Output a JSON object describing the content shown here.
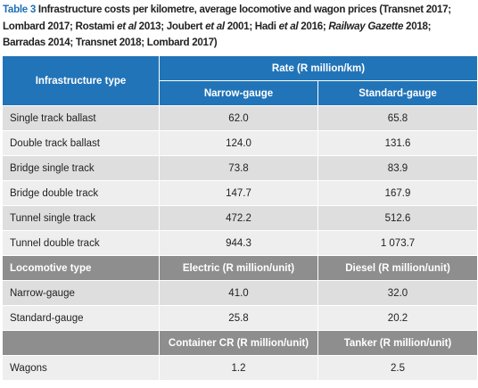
{
  "caption": {
    "label": "Table 3",
    "runs": [
      {
        "text": "Infrastructure costs per kilometre, average locomotive and wagon prices (Transnet 2017; Lombard 2017; Rostami "
      },
      {
        "text": "et al",
        "italic": true
      },
      {
        "text": " 2013; Joubert "
      },
      {
        "text": "et al",
        "italic": true
      },
      {
        "text": " 2001; Hadi "
      },
      {
        "text": "et al",
        "italic": true
      },
      {
        "text": " 2016; "
      },
      {
        "text": "Railway Gazette",
        "italic": true
      },
      {
        "text": " 2018; Barradas 2014; Transnet 2018; Lombard 2017)"
      }
    ]
  },
  "table": {
    "header": {
      "row_header": "Infrastructure type",
      "group": "Rate (R million/km)",
      "columns": [
        "Narrow-gauge",
        "Standard-gauge"
      ]
    },
    "infrastructure": [
      [
        "Single track ballast",
        "62.0",
        "65.8"
      ],
      [
        "Double track ballast",
        "124.0",
        "131.6"
      ],
      [
        "Bridge single track",
        "73.8",
        "83.9"
      ],
      [
        "Bridge double track",
        "147.7",
        "167.9"
      ],
      [
        "Tunnel single track",
        "472.2",
        "512.6"
      ],
      [
        "Tunnel double track",
        "944.3",
        "1 073.7"
      ]
    ],
    "locomotives": {
      "header": [
        "Locomotive type",
        "Electric (R million/unit)",
        "Diesel (R million/unit)"
      ],
      "rows": [
        [
          "Narrow-gauge",
          "41.0",
          "32.0"
        ],
        [
          "Standard-gauge",
          "25.8",
          "20.2"
        ]
      ]
    },
    "wagons": {
      "header": [
        "Container CR (R million/unit)",
        "Tanker (R million/unit)"
      ],
      "rows": [
        [
          "Wagons",
          "1.2",
          "2.5"
        ]
      ]
    }
  }
}
